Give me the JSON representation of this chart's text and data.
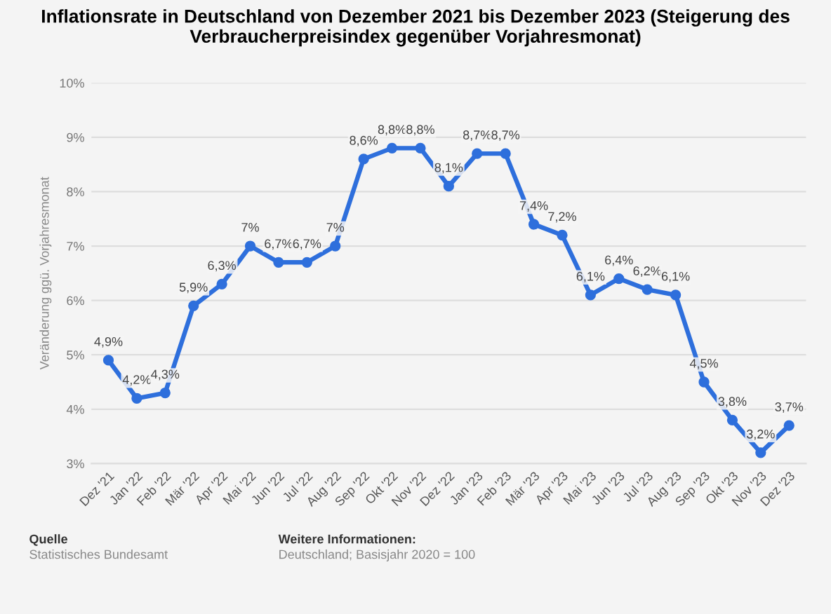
{
  "chart_data": {
    "type": "line",
    "title": "Inflationsrate in Deutschland von Dezember 2021 bis Dezember 2023 (Steigerung des Verbraucherpreisindex gegenüber Vorjahresmonat)",
    "ylabel": "Veränderung ggü. Vorjahresmonat",
    "categories": [
      "Dez '21",
      "Jan '22",
      "Feb '22",
      "Mär '22",
      "Apr '22",
      "Mai '22",
      "Jun '22",
      "Jul '22",
      "Aug '22",
      "Sep '22",
      "Okt '22",
      "Nov '22",
      "Dez '22",
      "Jan '23",
      "Feb '23",
      "Mär '23",
      "Apr '23",
      "Mai '23",
      "Jun '23",
      "Jul '23",
      "Aug '23",
      "Sep '23",
      "Okt '23",
      "Nov '23",
      "Dez '23"
    ],
    "values": [
      4.9,
      4.2,
      4.3,
      5.9,
      6.3,
      7,
      6.7,
      6.7,
      7,
      8.6,
      8.8,
      8.8,
      8.1,
      8.7,
      8.7,
      7.4,
      7.2,
      6.1,
      6.4,
      6.2,
      6.1,
      4.5,
      3.8,
      3.2,
      3.7
    ],
    "value_labels": [
      "4,9%",
      "4,2%",
      "4,3%",
      "5,9%",
      "6,3%",
      "7%",
      "6,7%",
      "6,7%",
      "7%",
      "8,6%",
      "8,8%",
      "8,8%",
      "8,1%",
      "8,7%",
      "8,7%",
      "7,4%",
      "7,2%",
      "6,1%",
      "6,4%",
      "6,2%",
      "6,1%",
      "4,5%",
      "3,8%",
      "3,2%",
      "3,7%"
    ],
    "color": "#2e6fdc",
    "ylim": [
      3,
      10
    ],
    "yticks": [
      {
        "value": 3,
        "label": "3%"
      },
      {
        "value": 4,
        "label": "4%"
      },
      {
        "value": 5,
        "label": "5%"
      },
      {
        "value": 6,
        "label": "6%"
      },
      {
        "value": 7,
        "label": "7%"
      },
      {
        "value": 8,
        "label": "8%"
      },
      {
        "value": 9,
        "label": "9%"
      },
      {
        "value": 10,
        "label": "10%"
      }
    ],
    "grid": "y",
    "marker": "circle",
    "line_style": "solid",
    "annotations": [
      "Quelle",
      "Statistisches Bundesamt",
      "Weitere Informationen:",
      "Deutschland; Basisjahr 2020 = 100"
    ]
  }
}
